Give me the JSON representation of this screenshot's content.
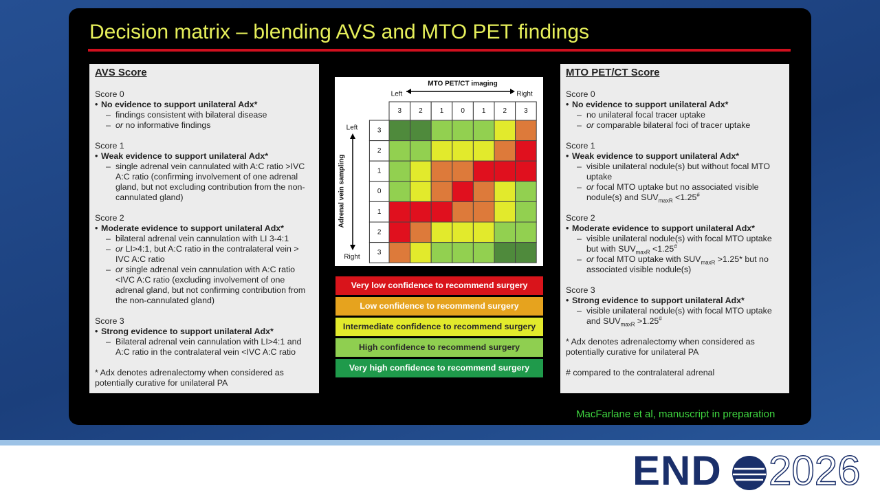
{
  "title": "Decision matrix – blending AVS and MTO PET findings",
  "avs": {
    "title": "AVS Score",
    "sections": [
      {
        "heading": "Score 0",
        "lead": "No evidence to support unilateral Adx*",
        "subs": [
          [
            {
              "text": "findings consistent with bilateral disease"
            }
          ],
          [
            {
              "italic": "or"
            },
            {
              "text": " no informative findings"
            }
          ]
        ]
      },
      {
        "heading": "Score 1",
        "lead": "Weak evidence to support unilateral Adx*",
        "subs": [
          [
            {
              "text": "single adrenal vein cannulated with A:C ratio >IVC A:C ratio (confirming involvement of one adrenal gland, but not excluding contribution from the non-cannulated gland)"
            }
          ]
        ]
      },
      {
        "heading": "Score 2",
        "lead": "Moderate evidence to support unilateral Adx*",
        "subs": [
          [
            {
              "text": "bilateral adrenal vein cannulation with LI 3-4:1"
            }
          ],
          [
            {
              "italic": "or"
            },
            {
              "text": " LI>4:1, but A:C ratio in the contralateral vein > IVC A:C ratio"
            }
          ],
          [
            {
              "italic": "or"
            },
            {
              "text": " single adrenal vein cannulation with A:C ratio <IVC A:C ratio (excluding involvement of one adrenal gland, but not confirming contribution from the non-cannulated gland)"
            }
          ]
        ]
      },
      {
        "heading": "Score 3",
        "lead": "Strong evidence to support unilateral Adx*",
        "subs": [
          [
            {
              "text": "Bilateral adrenal vein cannulation with LI>4:1 and A:C ratio in the contralateral vein <IVC A:C ratio"
            }
          ]
        ]
      }
    ],
    "footnotes": [
      "* Adx denotes adrenalectomy when considered as potentially curative for unilateral PA"
    ]
  },
  "mto": {
    "title": "MTO PET/CT Score",
    "sections": [
      {
        "heading": "Score 0",
        "lead": "No evidence to support unilateral Adx*",
        "subs": [
          [
            {
              "text": "no unilateral focal tracer uptake"
            }
          ],
          [
            {
              "italic": "or"
            },
            {
              "text": " comparable bilateral foci of tracer uptake"
            }
          ]
        ]
      },
      {
        "heading": "Score 1",
        "lead": "Weak evidence to support unilateral Adx*",
        "subs": [
          [
            {
              "text": "visible unilateral nodule(s) but without focal MTO uptake"
            }
          ],
          [
            {
              "italic": "or"
            },
            {
              "text": " focal MTO uptake but no associated visible nodule(s) and SUV"
            },
            {
              "sub": "maxR"
            },
            {
              "text": " <1.25"
            },
            {
              "sup": "#"
            }
          ]
        ]
      },
      {
        "heading": "Score 2",
        "lead": "Moderate evidence to support unilateral Adx*",
        "subs": [
          [
            {
              "text": "visible unilateral nodule(s) with focal MTO uptake but with SUV"
            },
            {
              "sub": "maxR"
            },
            {
              "text": " <1.25"
            },
            {
              "sup": "#"
            }
          ],
          [
            {
              "italic": "or"
            },
            {
              "text": " focal MTO uptake with SUV"
            },
            {
              "sub": "maxR"
            },
            {
              "text": " >1.25* but no associated visible nodule(s)"
            }
          ]
        ]
      },
      {
        "heading": "Score 3",
        "lead": "Strong evidence to support unilateral Adx*",
        "subs": [
          [
            {
              "text": "visible unilateral nodule(s) with focal MTO uptake and SUV"
            },
            {
              "sub": "maxR"
            },
            {
              "text": " >1.25"
            },
            {
              "sup": "#"
            }
          ]
        ]
      }
    ],
    "footnotes": [
      "* Adx denotes adrenalectomy when considered as potentially curative for unilateral PA",
      "# compared to the contralateral adrenal"
    ]
  },
  "matrix": {
    "x_title": "MTO PET/CT imaging",
    "x_left": "Left",
    "x_right": "Right",
    "y_title": "Adrenal vein sampling",
    "y_top": "Left",
    "y_bottom": "Right",
    "columns": [
      "3",
      "2",
      "1",
      "0",
      "1",
      "2",
      "3"
    ],
    "rows": [
      "3",
      "2",
      "1",
      "0",
      "1",
      "2",
      "3"
    ],
    "cells": [
      [
        "#4f8a3c",
        "#4f8a3c",
        "#92d050",
        "#92d050",
        "#92d050",
        "#e2ea2c",
        "#dd7a3a"
      ],
      [
        "#92d050",
        "#92d050",
        "#e2ea2c",
        "#e2ea2c",
        "#e2ea2c",
        "#dd7a3a",
        "#e0101e"
      ],
      [
        "#92d050",
        "#e2ea2c",
        "#dd7a3a",
        "#dd7a3a",
        "#e0101e",
        "#e0101e",
        "#e0101e"
      ],
      [
        "#92d050",
        "#e2ea2c",
        "#dd7a3a",
        "#e0101e",
        "#dd7a3a",
        "#e2ea2c",
        "#92d050"
      ],
      [
        "#e0101e",
        "#e0101e",
        "#e0101e",
        "#dd7a3a",
        "#dd7a3a",
        "#e2ea2c",
        "#92d050"
      ],
      [
        "#e0101e",
        "#dd7a3a",
        "#e2ea2c",
        "#e2ea2c",
        "#e2ea2c",
        "#92d050",
        "#92d050"
      ],
      [
        "#dd7a3a",
        "#e2ea2c",
        "#92d050",
        "#92d050",
        "#92d050",
        "#4f8a3c",
        "#4f8a3c"
      ]
    ]
  },
  "legend": [
    {
      "label": "Very low confidence to recommend surgery",
      "color": "#d9141b",
      "text_color": "#ffffff"
    },
    {
      "label": "Low confidence to recommend surgery",
      "color": "#e6a31e",
      "text_color": "#ffffff"
    },
    {
      "label": "Intermediate confidence to recommend surgery",
      "color": "#e2ea2c",
      "text_color": "#2a2a2a"
    },
    {
      "label": "High confidence to recommend surgery",
      "color": "#8fcf50",
      "text_color": "#2a2a2a"
    },
    {
      "label": "Very high confidence to recommend surgery",
      "color": "#1f9a4b",
      "text_color": "#ffffff"
    }
  ],
  "citation": "MacFarlane et al, manuscript in preparation",
  "logo": {
    "left": "END",
    "right": "2026"
  }
}
